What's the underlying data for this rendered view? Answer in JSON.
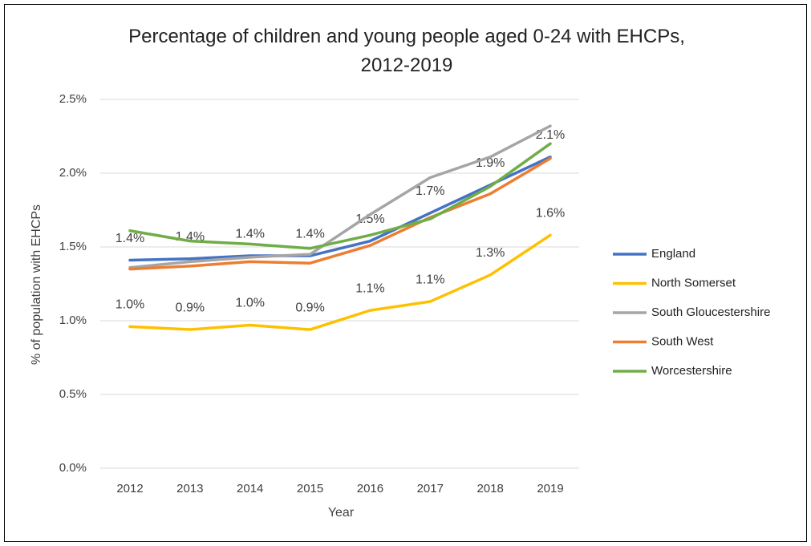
{
  "chart_data": {
    "type": "line",
    "title": "Percentage of children and young people aged 0-24 with EHCPs, 2012-2019",
    "x_label": "Year",
    "y_label": "% of population with EHCPs",
    "categories": [
      "2012",
      "2013",
      "2014",
      "2015",
      "2016",
      "2017",
      "2018",
      "2019"
    ],
    "series": [
      {
        "name": "England",
        "color": "#4472c4",
        "values": [
          1.41,
          1.42,
          1.44,
          1.44,
          1.54,
          1.73,
          1.92,
          2.11
        ],
        "value_labels": [
          "1.4%",
          "1.4%",
          "1.4%",
          "1.4%",
          "1.5%",
          "1.7%",
          "1.9%",
          "2.1%"
        ]
      },
      {
        "name": "North Somerset",
        "color": "#ffc000",
        "values": [
          0.96,
          0.94,
          0.97,
          0.94,
          1.07,
          1.13,
          1.31,
          1.58
        ],
        "value_labels": [
          "1.0%",
          "0.9%",
          "1.0%",
          "0.9%",
          "1.1%",
          "1.1%",
          "1.3%",
          "1.6%"
        ]
      },
      {
        "name": "South Gloucestershire",
        "color": "#a5a5a5",
        "values": [
          1.36,
          1.4,
          1.43,
          1.45,
          1.72,
          1.97,
          2.11,
          2.32
        ]
      },
      {
        "name": "South West",
        "color": "#ed7d31",
        "values": [
          1.35,
          1.37,
          1.4,
          1.39,
          1.51,
          1.7,
          1.86,
          2.1
        ]
      },
      {
        "name": "Worcestershire",
        "color": "#70ad47",
        "values": [
          1.61,
          1.54,
          1.52,
          1.49,
          1.58,
          1.69,
          1.91,
          2.2
        ]
      }
    ],
    "ylim": [
      0,
      2.5
    ],
    "yticks": [
      {
        "value": 0,
        "label": "0.0%"
      },
      {
        "value": 0.5,
        "label": "0.5%"
      },
      {
        "value": 1,
        "label": "1.0%"
      },
      {
        "value": 1.5,
        "label": "1.5%"
      },
      {
        "value": 2,
        "label": "2.0%"
      },
      {
        "value": 2.5,
        "label": "2.5%"
      }
    ],
    "grid": true,
    "legend": "right"
  }
}
